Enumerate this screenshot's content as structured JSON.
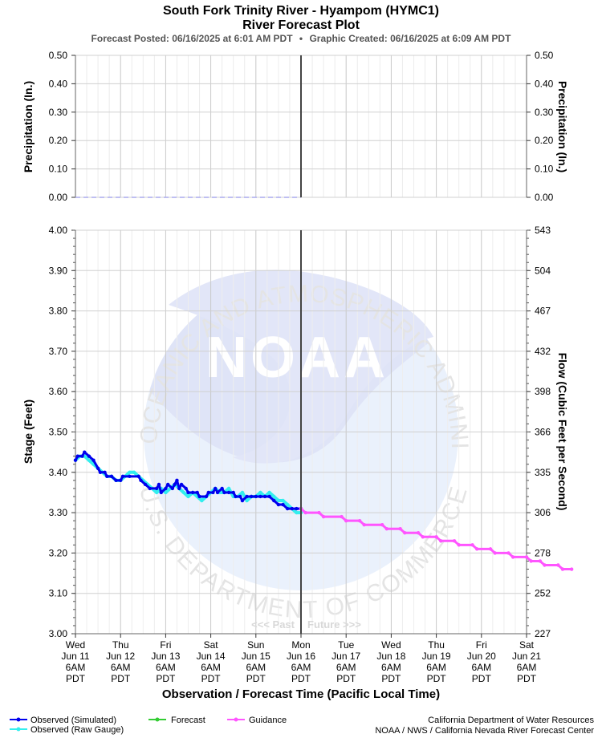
{
  "header": {
    "title": "South Fork Trinity River - Hyampom (HYMC1)",
    "subtitle": "River Forecast Plot",
    "posted": "Forecast Posted: 06/16/2025 at 6:01 AM PDT",
    "separator": "•",
    "created": "Graphic Created: 06/16/2025 at 6:09 AM PDT"
  },
  "colors": {
    "observed_simulated": "#0000ee",
    "observed_raw": "#33eeee",
    "forecast": "#33cc33",
    "guidance": "#ff55ff",
    "now_line": "#444444",
    "grid": "#d0d0d0",
    "precip": "#aaaaee",
    "watermark": "#e8ecfb"
  },
  "watermark": {
    "arc_top": "NATIONAL OCEANIC AND ATMOSPHERIC ADMINISTRATION",
    "arc_bottom": "U.S. DEPARTMENT OF COMMERCE",
    "logo": "NOAA"
  },
  "labels": {
    "past": "<<< Past",
    "future": "Future >>>"
  },
  "legend": {
    "observed_simulated": "Observed (Simulated)",
    "observed_raw": "Observed (Raw Gauge)",
    "forecast": "Forecast",
    "guidance": "Guidance"
  },
  "credits": {
    "line1": "California Department of Water Resources",
    "line2": "NOAA / NWS / California Nevada River Forecast Center"
  },
  "chart_data": [
    {
      "type": "line",
      "name": "precipitation",
      "ylabel_left": "Precipitation (In.)",
      "ylabel_right": "Precipitation (In.)",
      "ylim": [
        0,
        0.5
      ],
      "yticks": [
        "0.00",
        "0.10",
        "0.20",
        "0.30",
        "0.40",
        "0.50"
      ],
      "x_range_days": [
        0,
        10
      ],
      "x": [
        0,
        5
      ],
      "values": [
        0,
        0
      ]
    },
    {
      "type": "line",
      "name": "stage",
      "xlabel": "Observation / Forecast Time (Pacific Local Time)",
      "ylabel_left": "Stage (Feet)",
      "ylabel_right": "Flow (Cubic Feet per Second)",
      "ylim": [
        3.0,
        4.0
      ],
      "yticks_left": [
        "3.00",
        "3.10",
        "3.20",
        "3.30",
        "3.40",
        "3.50",
        "3.60",
        "3.70",
        "3.80",
        "3.90",
        "4.00"
      ],
      "yticks_right": [
        "227",
        "252",
        "278",
        "306",
        "335",
        "366",
        "398",
        "432",
        "467",
        "504",
        "543"
      ],
      "x_range_days": [
        0,
        10
      ],
      "now_day": 5,
      "x_ticks": [
        {
          "day": "Wed",
          "date": "Jun 11",
          "time": "6AM",
          "tz": "PDT"
        },
        {
          "day": "Thu",
          "date": "Jun 12",
          "time": "6AM",
          "tz": "PDT"
        },
        {
          "day": "Fri",
          "date": "Jun 13",
          "time": "6AM",
          "tz": "PDT"
        },
        {
          "day": "Sat",
          "date": "Jun 14",
          "time": "6AM",
          "tz": "PDT"
        },
        {
          "day": "Sun",
          "date": "Jun 15",
          "time": "6AM",
          "tz": "PDT"
        },
        {
          "day": "Mon",
          "date": "Jun 16",
          "time": "6AM",
          "tz": "PDT"
        },
        {
          "day": "Tue",
          "date": "Jun 17",
          "time": "6AM",
          "tz": "PDT"
        },
        {
          "day": "Wed",
          "date": "Jun 18",
          "time": "6AM",
          "tz": "PDT"
        },
        {
          "day": "Thu",
          "date": "Jun 19",
          "time": "6AM",
          "tz": "PDT"
        },
        {
          "day": "Fri",
          "date": "Jun 20",
          "time": "6AM",
          "tz": "PDT"
        },
        {
          "day": "Sat",
          "date": "Jun 21",
          "time": "6AM",
          "tz": "PDT"
        }
      ],
      "series": [
        {
          "name": "Observed (Raw Gauge)",
          "key": "observed_raw",
          "points": [
            [
              0.0,
              3.43
            ],
            [
              0.1,
              3.44
            ],
            [
              0.2,
              3.44
            ],
            [
              0.3,
              3.43
            ],
            [
              0.4,
              3.42
            ],
            [
              0.5,
              3.41
            ],
            [
              0.6,
              3.4
            ],
            [
              0.7,
              3.39
            ],
            [
              0.8,
              3.39
            ],
            [
              0.9,
              3.38
            ],
            [
              1.0,
              3.38
            ],
            [
              1.1,
              3.39
            ],
            [
              1.2,
              3.4
            ],
            [
              1.3,
              3.4
            ],
            [
              1.4,
              3.39
            ],
            [
              1.5,
              3.38
            ],
            [
              1.6,
              3.37
            ],
            [
              1.7,
              3.36
            ],
            [
              1.8,
              3.35
            ],
            [
              1.9,
              3.36
            ],
            [
              2.0,
              3.35
            ],
            [
              2.1,
              3.36
            ],
            [
              2.2,
              3.37
            ],
            [
              2.3,
              3.36
            ],
            [
              2.4,
              3.35
            ],
            [
              2.5,
              3.34
            ],
            [
              2.6,
              3.35
            ],
            [
              2.7,
              3.34
            ],
            [
              2.8,
              3.33
            ],
            [
              2.9,
              3.34
            ],
            [
              3.0,
              3.35
            ],
            [
              3.1,
              3.36
            ],
            [
              3.2,
              3.35
            ],
            [
              3.3,
              3.35
            ],
            [
              3.4,
              3.36
            ],
            [
              3.5,
              3.34
            ],
            [
              3.6,
              3.34
            ],
            [
              3.7,
              3.35
            ],
            [
              3.8,
              3.33
            ],
            [
              3.9,
              3.34
            ],
            [
              4.0,
              3.34
            ],
            [
              4.1,
              3.35
            ],
            [
              4.2,
              3.34
            ],
            [
              4.3,
              3.35
            ],
            [
              4.4,
              3.34
            ],
            [
              4.5,
              3.33
            ],
            [
              4.6,
              3.33
            ],
            [
              4.7,
              3.32
            ],
            [
              4.8,
              3.31
            ],
            [
              4.9,
              3.3
            ],
            [
              5.0,
              3.3
            ]
          ]
        },
        {
          "name": "Observed (Simulated)",
          "key": "observed_simulated",
          "points": [
            [
              0.0,
              3.43
            ],
            [
              0.05,
              3.44
            ],
            [
              0.15,
              3.44
            ],
            [
              0.2,
              3.45
            ],
            [
              0.3,
              3.44
            ],
            [
              0.4,
              3.43
            ],
            [
              0.5,
              3.41
            ],
            [
              0.55,
              3.4
            ],
            [
              0.65,
              3.4
            ],
            [
              0.7,
              3.39
            ],
            [
              0.8,
              3.39
            ],
            [
              0.9,
              3.38
            ],
            [
              1.0,
              3.38
            ],
            [
              1.05,
              3.39
            ],
            [
              1.2,
              3.39
            ],
            [
              1.4,
              3.39
            ],
            [
              1.45,
              3.38
            ],
            [
              1.55,
              3.37
            ],
            [
              1.65,
              3.36
            ],
            [
              1.8,
              3.36
            ],
            [
              1.85,
              3.37
            ],
            [
              1.9,
              3.35
            ],
            [
              2.0,
              3.36
            ],
            [
              2.05,
              3.37
            ],
            [
              2.15,
              3.36
            ],
            [
              2.2,
              3.37
            ],
            [
              2.25,
              3.38
            ],
            [
              2.3,
              3.36
            ],
            [
              2.35,
              3.37
            ],
            [
              2.45,
              3.36
            ],
            [
              2.5,
              3.35
            ],
            [
              2.6,
              3.35
            ],
            [
              2.7,
              3.35
            ],
            [
              2.75,
              3.34
            ],
            [
              2.9,
              3.34
            ],
            [
              2.95,
              3.35
            ],
            [
              3.05,
              3.35
            ],
            [
              3.1,
              3.36
            ],
            [
              3.15,
              3.35
            ],
            [
              3.25,
              3.36
            ],
            [
              3.3,
              3.35
            ],
            [
              3.4,
              3.35
            ],
            [
              3.5,
              3.35
            ],
            [
              3.55,
              3.34
            ],
            [
              3.65,
              3.34
            ],
            [
              3.7,
              3.33
            ],
            [
              3.8,
              3.34
            ],
            [
              3.9,
              3.34
            ],
            [
              4.0,
              3.34
            ],
            [
              4.1,
              3.34
            ],
            [
              4.2,
              3.34
            ],
            [
              4.3,
              3.34
            ],
            [
              4.4,
              3.33
            ],
            [
              4.5,
              3.32
            ],
            [
              4.6,
              3.32
            ],
            [
              4.7,
              3.31
            ],
            [
              4.8,
              3.31
            ],
            [
              4.9,
              3.31
            ],
            [
              5.0,
              3.31
            ]
          ]
        },
        {
          "name": "Forecast",
          "key": "forecast",
          "points": []
        },
        {
          "name": "Guidance",
          "key": "guidance",
          "points": [
            [
              5.0,
              3.31
            ],
            [
              5.1,
              3.3
            ],
            [
              5.4,
              3.3
            ],
            [
              5.5,
              3.29
            ],
            [
              5.9,
              3.29
            ],
            [
              6.0,
              3.28
            ],
            [
              6.3,
              3.28
            ],
            [
              6.4,
              3.27
            ],
            [
              6.8,
              3.27
            ],
            [
              6.9,
              3.26
            ],
            [
              7.2,
              3.26
            ],
            [
              7.3,
              3.25
            ],
            [
              7.6,
              3.25
            ],
            [
              7.7,
              3.24
            ],
            [
              8.0,
              3.24
            ],
            [
              8.1,
              3.23
            ],
            [
              8.4,
              3.23
            ],
            [
              8.5,
              3.22
            ],
            [
              8.8,
              3.22
            ],
            [
              8.9,
              3.21
            ],
            [
              9.2,
              3.21
            ],
            [
              9.3,
              3.2
            ],
            [
              9.6,
              3.2
            ],
            [
              9.7,
              3.19
            ],
            [
              10.0,
              3.19
            ],
            [
              10.1,
              3.18
            ],
            [
              10.3,
              3.18
            ],
            [
              10.4,
              3.17
            ],
            [
              10.7,
              3.17
            ],
            [
              10.8,
              3.16
            ],
            [
              11.0,
              3.16
            ]
          ]
        }
      ]
    }
  ]
}
